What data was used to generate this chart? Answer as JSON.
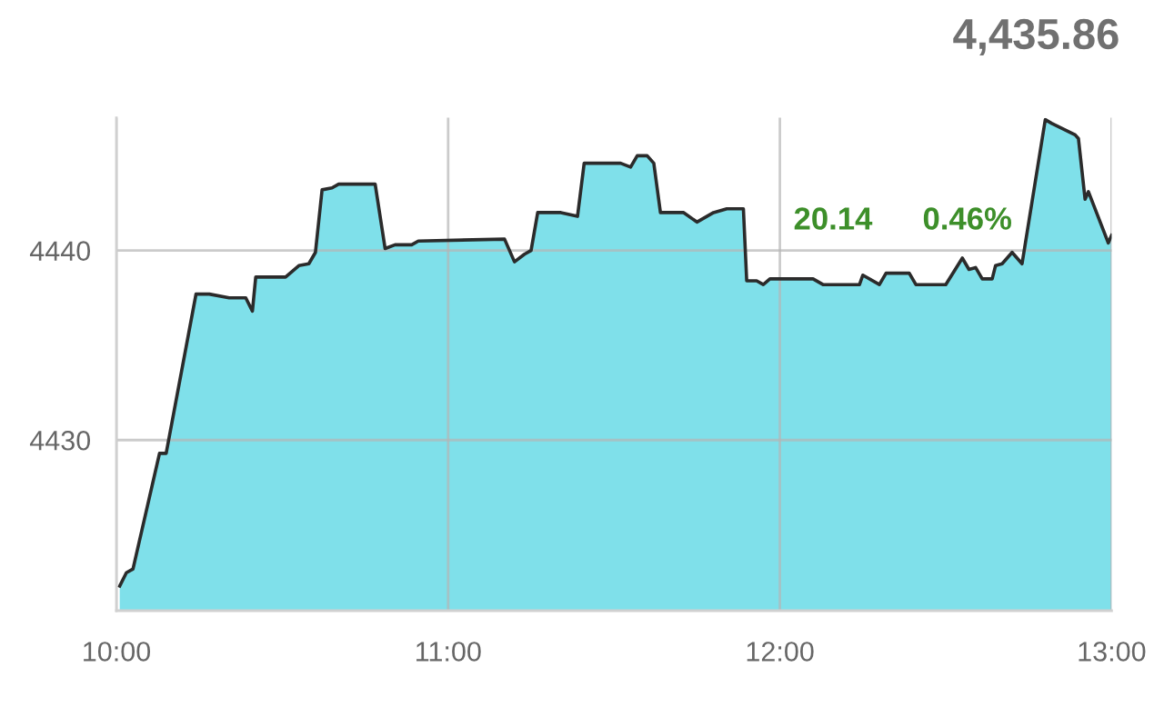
{
  "chart_data": {
    "type": "area",
    "color": "#7fe0ea",
    "x": [
      10.01,
      10.03,
      10.05,
      10.13,
      10.15,
      10.24,
      10.28,
      10.34,
      10.39,
      10.41,
      10.42,
      10.51,
      10.55,
      10.58,
      10.6,
      10.62,
      10.65,
      10.67,
      10.78,
      10.81,
      10.84,
      10.89,
      10.91,
      11.17,
      11.2,
      11.23,
      11.25,
      11.27,
      11.34,
      11.39,
      11.41,
      11.52,
      11.55,
      11.57,
      11.6,
      11.62,
      11.64,
      11.71,
      11.75,
      11.8,
      11.84,
      11.89,
      11.9,
      11.93,
      11.95,
      11.97,
      12.1,
      12.13,
      12.24,
      12.25,
      12.3,
      12.32,
      12.39,
      12.41,
      12.5,
      12.55,
      12.57,
      12.59,
      12.61,
      12.64,
      12.65,
      12.67,
      12.7,
      12.73,
      12.8,
      12.82,
      12.89,
      12.9,
      12.92,
      12.93,
      12.99,
      13.0
    ],
    "values": [
      4422.3,
      4423.0,
      4423.2,
      4429.3,
      4429.3,
      4437.7,
      4437.7,
      4437.5,
      4437.5,
      4436.8,
      4438.6,
      4438.6,
      4439.2,
      4439.3,
      4439.9,
      4443.2,
      4443.3,
      4443.5,
      4443.5,
      4440.1,
      4440.3,
      4440.3,
      4440.5,
      4440.6,
      4439.4,
      4439.8,
      4440.0,
      4442.0,
      4442.0,
      4441.8,
      4444.6,
      4444.6,
      4444.4,
      4445.0,
      4445.0,
      4444.6,
      4442.0,
      4442.0,
      4441.5,
      4442.0,
      4442.2,
      4442.2,
      4438.4,
      4438.4,
      4438.2,
      4438.5,
      4438.5,
      4438.2,
      4438.2,
      4438.7,
      4438.2,
      4438.8,
      4438.8,
      4438.2,
      4438.2,
      4439.6,
      4439.0,
      4439.1,
      4438.5,
      4438.5,
      4439.2,
      4439.3,
      4439.9,
      4439.3,
      4446.9,
      4446.7,
      4446.1,
      4445.9,
      4442.7,
      4443.1,
      4440.4,
      4440.8
    ],
    "xlim": [
      10,
      13
    ],
    "xticks": [
      {
        "value": 10,
        "label": "10:00"
      },
      {
        "value": 11,
        "label": "11:00"
      },
      {
        "value": 12,
        "label": "12:00"
      },
      {
        "value": 13,
        "label": "13:00"
      }
    ],
    "ylim": [
      4421,
      4447
    ],
    "yticks": [
      4430,
      4440
    ],
    "grid": true,
    "annotations": [
      "4,435.86",
      "20.14",
      "0.46%"
    ]
  }
}
